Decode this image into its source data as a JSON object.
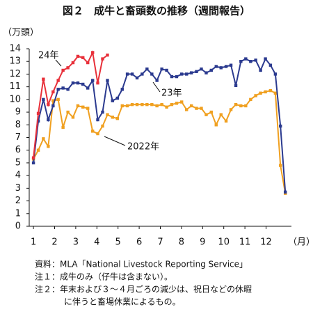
{
  "chart_data": {
    "type": "line",
    "title": "図２　成牛と畜頭数の推移（週間報告）",
    "y_label": "（万頭）",
    "x_label": "（月）",
    "notes": [
      "資料：MLA「National Livestock Reporting Service」",
      "注１：成牛のみ（仔牛は含まない）。",
      "注２：年末および３～４月ごろの減少は、祝日などの休暇",
      "に伴うと畜場休業によるもの。"
    ],
    "x": [
      1.0,
      1.23,
      1.47,
      1.7,
      1.93,
      2.17,
      2.4,
      2.63,
      2.87,
      3.1,
      3.34,
      3.57,
      3.8,
      4.04,
      4.27,
      4.5,
      4.74,
      4.97,
      5.2,
      5.44,
      5.67,
      5.9,
      6.14,
      6.37,
      6.6,
      6.84,
      7.07,
      7.3,
      7.54,
      7.77,
      8.01,
      8.24,
      8.47,
      8.71,
      8.94,
      9.17,
      9.41,
      9.64,
      9.87,
      10.11,
      10.34,
      10.57,
      10.81,
      11.04,
      11.27,
      11.51,
      11.74,
      11.97,
      12.21,
      12.44,
      12.68,
      12.91
    ],
    "xlim": [
      0.8,
      13.2
    ],
    "xticks": [
      1,
      2,
      3,
      4,
      5,
      6,
      7,
      8,
      9,
      10,
      11,
      12
    ],
    "ylim": [
      0,
      14
    ],
    "yticks": [
      0,
      1,
      2,
      3,
      4,
      5,
      6,
      7,
      8,
      9,
      10,
      11,
      12,
      13,
      14
    ],
    "series": [
      {
        "name": "2022年",
        "color": "#f0a020",
        "values": [
          5.3,
          6.0,
          6.9,
          6.3,
          9.9,
          10.0,
          7.8,
          9.0,
          8.6,
          9.5,
          9.4,
          9.3,
          7.5,
          7.3,
          7.9,
          8.8,
          8.6,
          8.5,
          9.5,
          9.5,
          9.6,
          9.6,
          9.6,
          9.6,
          9.6,
          9.5,
          9.6,
          9.4,
          9.6,
          9.7,
          9.8,
          9.2,
          9.5,
          9.3,
          9.3,
          8.8,
          9.0,
          8.0,
          8.8,
          8.3,
          9.2,
          9.6,
          9.5,
          9.5,
          10.0,
          10.3,
          10.5,
          10.6,
          10.7,
          10.5,
          4.8,
          2.6
        ]
      },
      {
        "name": "23年",
        "color": "#2b3a8f",
        "values": [
          5.0,
          8.3,
          10.0,
          8.4,
          9.5,
          10.8,
          10.9,
          10.8,
          11.3,
          11.3,
          11.2,
          10.9,
          11.5,
          8.4,
          9.0,
          11.5,
          9.9,
          10.1,
          10.8,
          12.0,
          12.0,
          11.7,
          12.0,
          12.4,
          12.0,
          11.5,
          12.4,
          12.3,
          11.8,
          11.8,
          12.0,
          12.0,
          12.1,
          12.2,
          12.4,
          12.1,
          12.3,
          12.6,
          12.5,
          12.6,
          12.7,
          11.1,
          13.0,
          13.2,
          13.0,
          13.1,
          12.3,
          13.2,
          12.7,
          12.0,
          7.9,
          2.7
        ]
      },
      {
        "name": "24年",
        "color": "#e8303a",
        "values": [
          5.4,
          8.9,
          11.6,
          9.6,
          10.6,
          11.5,
          12.3,
          12.5,
          12.9,
          13.4,
          13.3,
          12.9,
          13.7,
          11.3,
          13.2,
          13.5,
          null,
          null,
          null,
          null,
          null,
          null,
          null,
          null,
          null,
          null,
          null,
          null,
          null,
          null,
          null,
          null,
          null,
          null,
          null,
          null,
          null,
          null,
          null,
          null,
          null,
          null,
          null,
          null,
          null,
          null,
          null,
          null,
          null,
          null,
          null,
          null
        ]
      }
    ]
  }
}
